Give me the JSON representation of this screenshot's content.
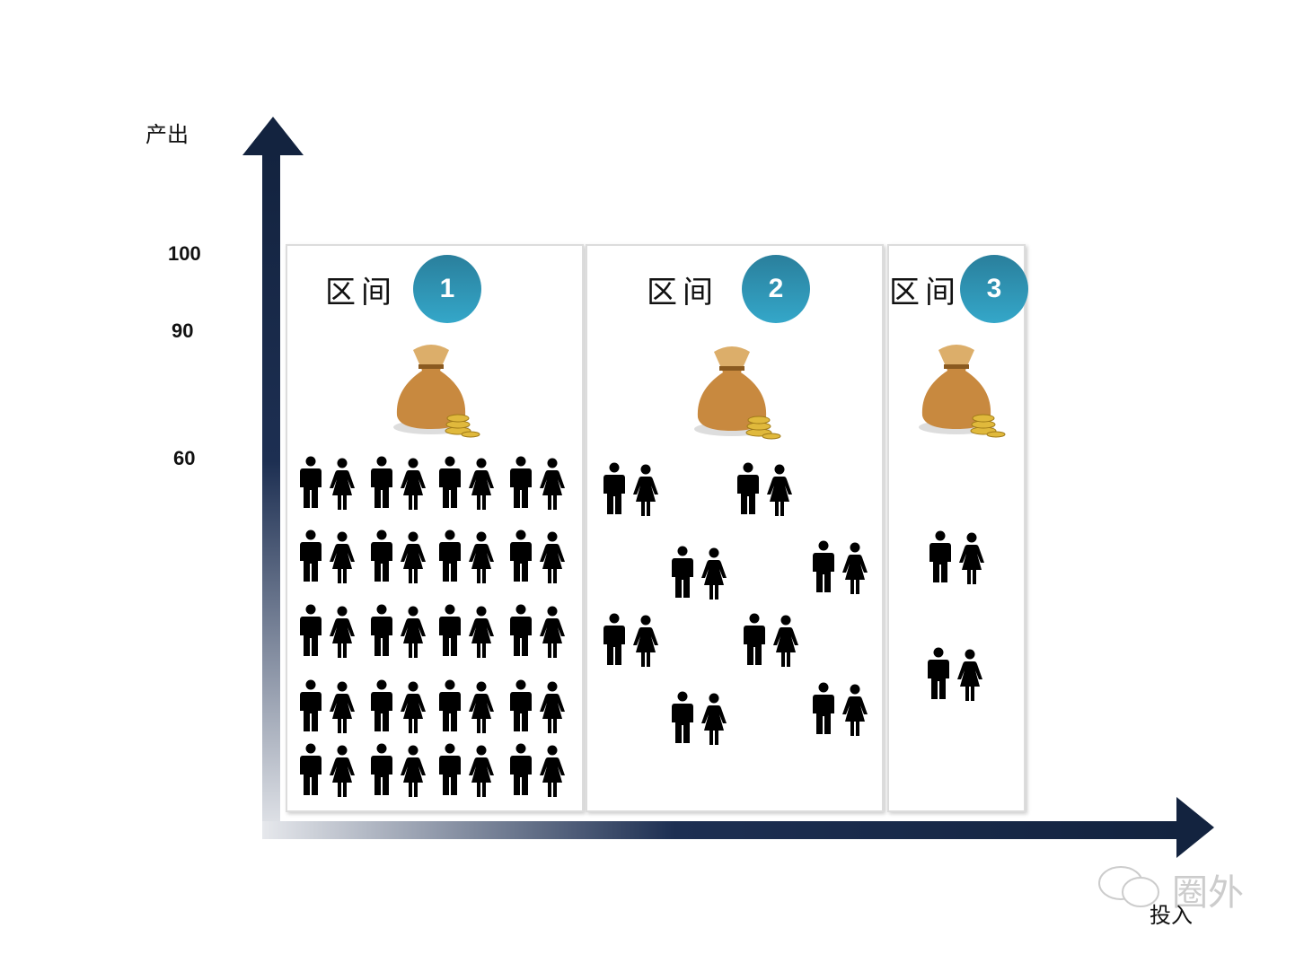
{
  "y_axis": {
    "label": "产出",
    "ticks": [
      "100",
      "90",
      "60"
    ]
  },
  "x_axis": {
    "label": "投入"
  },
  "panels": [
    {
      "title": "区间",
      "number": "1",
      "pairs": 20
    },
    {
      "title": "区间",
      "number": "2",
      "pairs": 8
    },
    {
      "title": "区间",
      "number": "3",
      "pairs": 2
    }
  ],
  "watermark": "圈外",
  "colors": {
    "axis_dark": "#13233f",
    "badge": "#2f93b4",
    "bag": "#c8893f"
  },
  "icons": [
    "money-bag-icon",
    "man-icon",
    "woman-icon",
    "wechat-icon"
  ]
}
